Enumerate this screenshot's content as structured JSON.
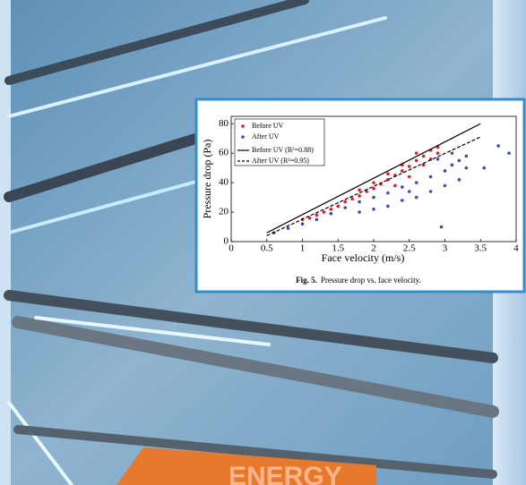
{
  "book_title": "ENERGY",
  "chart_data": {
    "type": "scatter",
    "x_label": "Face velocity (m/s)",
    "y_label": "Pressure drop (Pa)",
    "caption_label": "Fig. 5.",
    "caption": "Pressure drop vs. face velocity.",
    "xlim": [
      0,
      4
    ],
    "ylim": [
      0,
      85
    ],
    "xticks": [
      0,
      0.5,
      1,
      1.5,
      2,
      2.5,
      3,
      3.5,
      4
    ],
    "yticks": [
      0,
      20,
      40,
      60,
      80
    ],
    "legend": "upper left",
    "series": [
      {
        "name": "Before UV",
        "color": "#e8192c",
        "kind": "points",
        "x": [
          1.0,
          1.1,
          1.2,
          1.3,
          1.4,
          1.5,
          1.6,
          1.7,
          1.8,
          1.9,
          2.0,
          2.1,
          2.2,
          2.3,
          2.4,
          2.5,
          2.6,
          2.7,
          2.8,
          2.9,
          2.2,
          2.4,
          2.6,
          2.5,
          2.7,
          2.3,
          2.0,
          1.8,
          2.8,
          2.9
        ],
        "values": [
          15,
          16,
          18,
          20,
          22,
          24,
          27,
          29,
          31,
          34,
          36,
          39,
          42,
          45,
          48,
          51,
          55,
          58,
          62,
          64,
          46,
          52,
          60,
          44,
          52,
          38,
          40,
          35,
          56,
          60
        ]
      },
      {
        "name": "After UV",
        "color": "#3c4ea8",
        "kind": "points",
        "x": [
          0.6,
          0.8,
          1.0,
          1.2,
          1.4,
          1.6,
          1.8,
          2.0,
          2.2,
          2.4,
          2.6,
          2.8,
          3.0,
          3.1,
          3.2,
          3.3,
          3.2,
          3.0,
          2.8,
          2.6,
          2.4,
          2.2,
          2.0,
          1.8,
          3.1,
          2.9,
          3.3,
          2.95,
          3.55,
          3.75,
          3.9,
          2.5
        ],
        "values": [
          6,
          9,
          12,
          15,
          19,
          23,
          27,
          30,
          33,
          37,
          40,
          44,
          48,
          52,
          55,
          50,
          42,
          38,
          34,
          30,
          28,
          24,
          22,
          20,
          60,
          56,
          58,
          10,
          50,
          65,
          60,
          34
        ]
      },
      {
        "name": "Before UV (R²=0.88)",
        "color": "#000000",
        "kind": "line",
        "dash": "solid",
        "x": [
          0.5,
          3.5
        ],
        "values": [
          6,
          80
        ]
      },
      {
        "name": "After UV (R²=0.95)",
        "color": "#000000",
        "kind": "line",
        "dash": "dashed",
        "x": [
          0.5,
          3.5
        ],
        "values": [
          4,
          71
        ]
      }
    ]
  }
}
